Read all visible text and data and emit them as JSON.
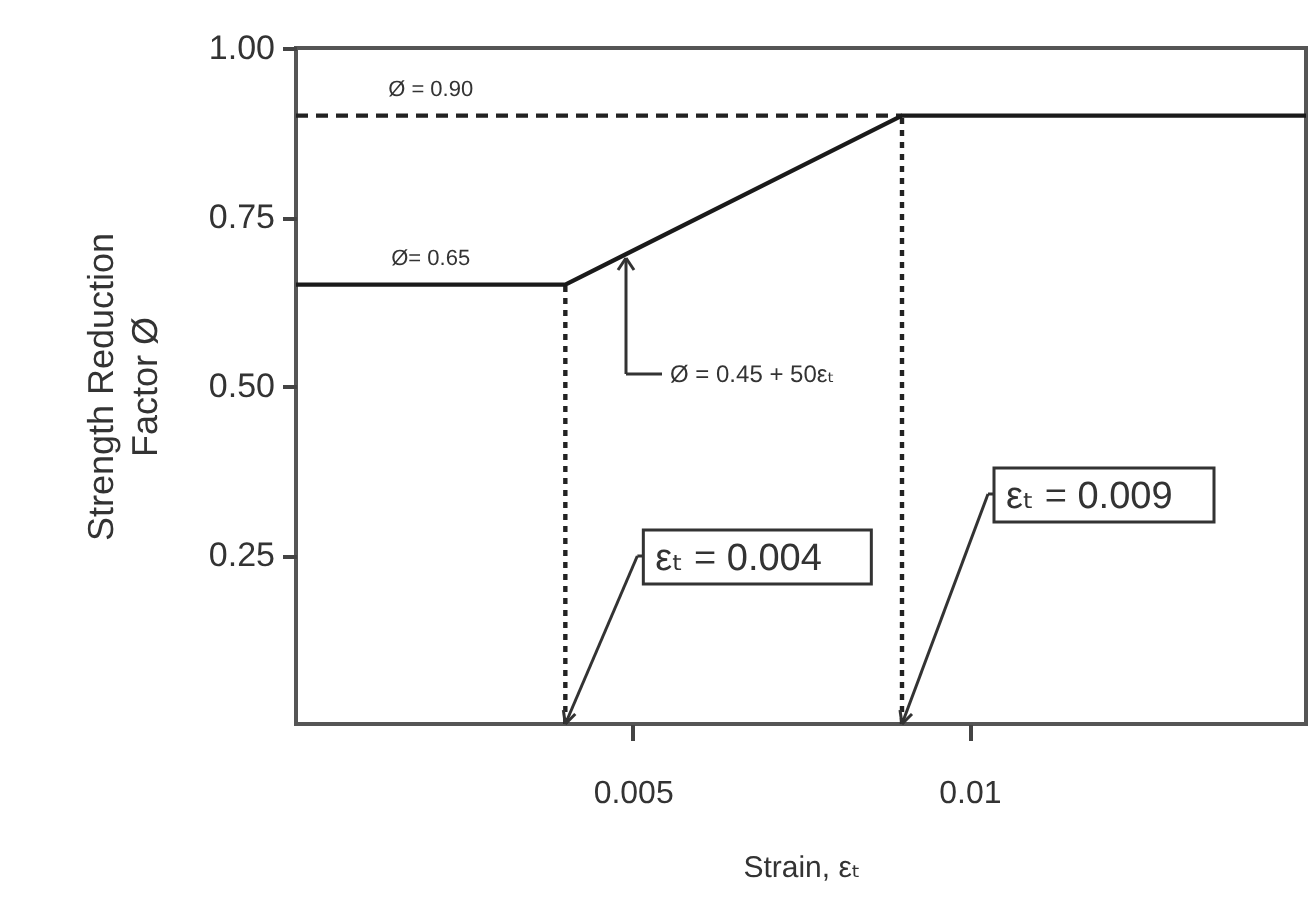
{
  "chart_data": {
    "type": "line",
    "xlabel": "Strain, εₜ",
    "ylabel": "Strength Reduction Factor Ø",
    "xlim": [
      0,
      0.015
    ],
    "ylim": [
      0,
      1
    ],
    "xticks": [
      0.005,
      0.01
    ],
    "yticks": [
      {
        "value": 0.25,
        "label": "0.25"
      },
      {
        "value": 0.5,
        "label": "0.50"
      },
      {
        "value": 0.75,
        "label": "0.75"
      },
      {
        "value": 1,
        "label": "1.00"
      }
    ],
    "grid": false,
    "marker": "none",
    "series": [
      {
        "color": "#222222",
        "line_style": "dashed",
        "x": [
          0,
          0.009
        ],
        "values": [
          0.9,
          0.9
        ]
      },
      {
        "color": "#222222",
        "line_style": "dotted",
        "x": [
          0.004,
          0.004
        ],
        "values": [
          0,
          0.65
        ]
      },
      {
        "color": "#222222",
        "line_style": "dotted",
        "x": [
          0.009,
          0.009
        ],
        "values": [
          0,
          0.9
        ]
      },
      {
        "color": "#1a1a1a",
        "line_style": "solid",
        "x": [
          0,
          0.004,
          0.009,
          0.015
        ],
        "values": [
          0.65,
          0.65,
          0.9,
          0.9
        ]
      }
    ],
    "annotations": [
      {
        "text": "Ø = 0.90",
        "x": 0.002,
        "y": 0.9
      },
      {
        "text": "Ø= 0.65",
        "x": 0.002,
        "y": 0.65
      },
      "Ø = 0.45 + 50εₜ",
      {
        "text": "εₜ = 0.004",
        "x": 0.004,
        "y": 0
      },
      {
        "text": "εₜ = 0.009",
        "x": 0.009,
        "y": 0
      }
    ]
  }
}
